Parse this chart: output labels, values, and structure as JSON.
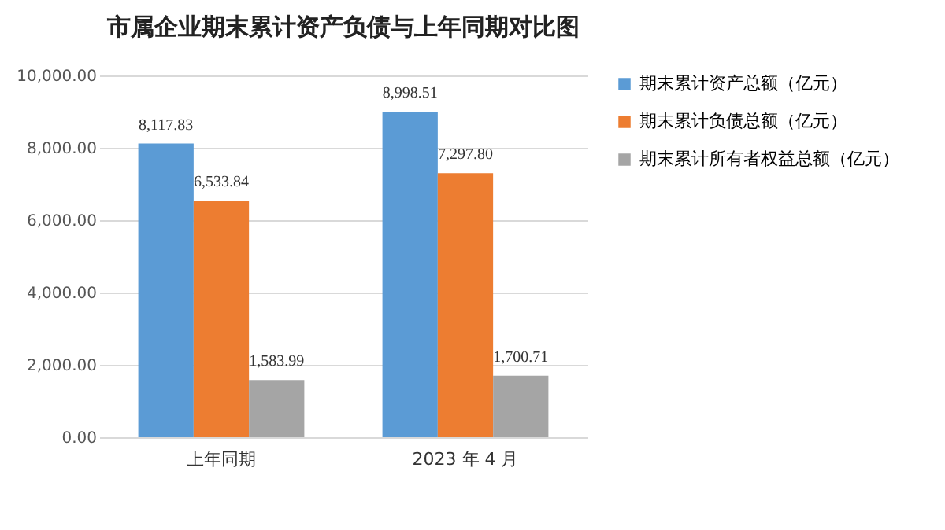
{
  "chart_data": {
    "type": "bar",
    "title": "市属企业期末累计资产负债与上年同期对比图",
    "categories": [
      "上年同期",
      "2023 年 4 月"
    ],
    "series": [
      {
        "name": "期末累计资产总额（亿元）",
        "color": "#5b9bd5",
        "values": [
          8117.83,
          8998.51
        ],
        "value_labels": [
          "8,117.83",
          "8,998.51"
        ]
      },
      {
        "name": "期末累计负债总额（亿元）",
        "color": "#ed7d31",
        "values": [
          6533.84,
          7297.8
        ],
        "value_labels": [
          "6,533.84",
          "7,297.80"
        ]
      },
      {
        "name": "期末累计所有者权益总额（亿元）",
        "color": "#a5a5a5",
        "values": [
          1583.99,
          1700.71
        ],
        "value_labels": [
          "1,583.99",
          "1,700.71"
        ]
      }
    ],
    "ylim": [
      0,
      10000
    ],
    "yticks": [
      {
        "value": 0,
        "label": "0.00"
      },
      {
        "value": 2000,
        "label": "2,000.00"
      },
      {
        "value": 4000,
        "label": "4,000.00"
      },
      {
        "value": 6000,
        "label": "6,000.00"
      },
      {
        "value": 8000,
        "label": "8,000.00"
      },
      {
        "value": 10000,
        "label": "10,000.00"
      }
    ],
    "grid": "y",
    "legend": "right"
  }
}
